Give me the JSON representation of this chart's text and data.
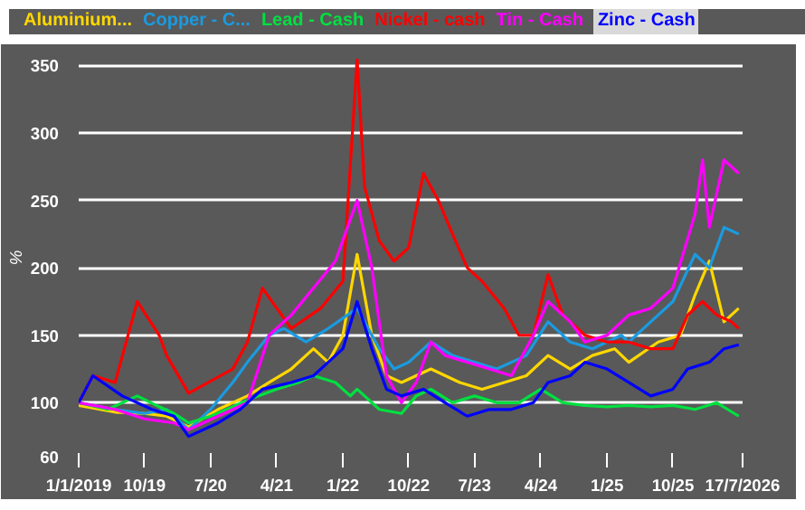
{
  "chart_data": {
    "type": "line",
    "ylabel": "%",
    "xlim": [
      "2019-01-01",
      "2026-07-17"
    ],
    "xticks": [
      {
        "value": "2019-01-01",
        "label": "1/1/2019"
      },
      {
        "value": "2019-10-01",
        "label": "10/19"
      },
      {
        "value": "2020-07-01",
        "label": "7/20"
      },
      {
        "value": "2021-04-01",
        "label": "4/21"
      },
      {
        "value": "2022-01-01",
        "label": "1/22"
      },
      {
        "value": "2022-10-01",
        "label": "10/22"
      },
      {
        "value": "2023-07-01",
        "label": "7/23"
      },
      {
        "value": "2024-04-01",
        "label": "4/24"
      },
      {
        "value": "2025-01-01",
        "label": "1/25"
      },
      {
        "value": "2025-10-01",
        "label": "10/25"
      },
      {
        "value": "2026-07-17",
        "label": "17/7/2026"
      }
    ],
    "ylim": [
      60,
      355
    ],
    "yticks": [
      60,
      100,
      150,
      200,
      250,
      300,
      350
    ],
    "grid": "y",
    "line_style": "solid",
    "marker": "none",
    "series": [
      {
        "name": "Aluminium...",
        "color": "#ffd700",
        "x": [
          "2019-01",
          "2019-06",
          "2019-10",
          "2020-01",
          "2020-04",
          "2020-08",
          "2020-12",
          "2021-03",
          "2021-06",
          "2021-09",
          "2021-11",
          "2022-01",
          "2022-03",
          "2022-05",
          "2022-07",
          "2022-09",
          "2023-01",
          "2023-05",
          "2023-08",
          "2023-11",
          "2024-02",
          "2024-05",
          "2024-08",
          "2024-11",
          "2025-02",
          "2025-04",
          "2025-08",
          "2025-11",
          "2026-01",
          "2026-03",
          "2026-05",
          "2026-07"
        ],
        "values": [
          98,
          93,
          92,
          90,
          82,
          95,
          105,
          115,
          125,
          140,
          130,
          150,
          210,
          150,
          120,
          115,
          125,
          115,
          110,
          115,
          120,
          135,
          125,
          135,
          140,
          130,
          145,
          150,
          180,
          205,
          160,
          170
        ]
      },
      {
        "name": "Copper - C...",
        "color": "#1a9be0",
        "x": [
          "2019-01",
          "2019-06",
          "2019-10",
          "2020-01",
          "2020-04",
          "2020-07",
          "2020-10",
          "2020-12",
          "2021-03",
          "2021-05",
          "2021-08",
          "2021-11",
          "2022-03",
          "2022-06",
          "2022-08",
          "2022-10",
          "2023-01",
          "2023-04",
          "2023-07",
          "2023-10",
          "2024-02",
          "2024-05",
          "2024-08",
          "2024-11",
          "2025-03",
          "2025-04",
          "2025-07",
          "2025-10",
          "2026-01",
          "2026-03",
          "2026-05",
          "2026-07"
        ],
        "values": [
          100,
          95,
          92,
          95,
          80,
          95,
          115,
          130,
          150,
          155,
          145,
          155,
          170,
          140,
          125,
          130,
          145,
          135,
          130,
          125,
          135,
          160,
          145,
          140,
          150,
          145,
          160,
          175,
          210,
          200,
          230,
          225
        ]
      },
      {
        "name": "Lead - Cash",
        "color": "#00e040",
        "x": [
          "2019-01",
          "2019-05",
          "2019-09",
          "2019-12",
          "2020-02",
          "2020-04",
          "2020-07",
          "2020-10",
          "2020-12",
          "2021-04",
          "2021-07",
          "2021-09",
          "2021-12",
          "2022-02",
          "2022-03",
          "2022-06",
          "2022-09",
          "2022-11",
          "2023-01",
          "2023-04",
          "2023-07",
          "2023-10",
          "2024-01",
          "2024-04",
          "2024-07",
          "2024-10",
          "2025-01",
          "2025-04",
          "2025-07",
          "2025-10",
          "2026-01",
          "2026-04",
          "2026-07"
        ],
        "values": [
          100,
          95,
          105,
          97,
          92,
          85,
          90,
          97,
          102,
          110,
          115,
          120,
          115,
          105,
          110,
          95,
          92,
          105,
          110,
          100,
          105,
          100,
          100,
          110,
          100,
          98,
          97,
          98,
          97,
          98,
          95,
          100,
          90
        ]
      },
      {
        "name": "Nickel - cash",
        "color": "#ff0000",
        "x": [
          "2019-01",
          "2019-03",
          "2019-06",
          "2019-09",
          "2019-12",
          "2020-01",
          "2020-04",
          "2020-10",
          "2020-12",
          "2021-02",
          "2021-06",
          "2021-10",
          "2022-01",
          "2022-03",
          "2022-04",
          "2022-06",
          "2022-08",
          "2022-10",
          "2022-12",
          "2023-02",
          "2023-04",
          "2023-06",
          "2023-08",
          "2023-11",
          "2024-01",
          "2024-03",
          "2024-05",
          "2024-07",
          "2024-10",
          "2025-01",
          "2025-04",
          "2025-07",
          "2025-10",
          "2025-12",
          "2026-02",
          "2026-04",
          "2026-06",
          "2026-07"
        ],
        "values": [
          100,
          120,
          115,
          175,
          150,
          135,
          107,
          125,
          145,
          185,
          155,
          170,
          190,
          355,
          260,
          220,
          205,
          215,
          270,
          250,
          225,
          200,
          190,
          170,
          150,
          150,
          195,
          165,
          150,
          145,
          145,
          140,
          140,
          165,
          175,
          165,
          160,
          155
        ]
      },
      {
        "name": "Tin - Cash",
        "color": "#ff00ff",
        "x": [
          "2019-01",
          "2019-06",
          "2019-10",
          "2020-02",
          "2020-04",
          "2020-08",
          "2020-12",
          "2021-03",
          "2021-06",
          "2021-09",
          "2021-12",
          "2022-03",
          "2022-05",
          "2022-07",
          "2022-09",
          "2022-11",
          "2023-01",
          "2023-03",
          "2023-06",
          "2023-09",
          "2023-12",
          "2024-03",
          "2024-05",
          "2024-08",
          "2024-10",
          "2025-01",
          "2025-04",
          "2025-07",
          "2025-10",
          "2026-01",
          "2026-02",
          "2026-03",
          "2026-05",
          "2026-07"
        ],
        "values": [
          100,
          95,
          88,
          85,
          80,
          90,
          100,
          150,
          165,
          185,
          205,
          250,
          200,
          120,
          100,
          115,
          145,
          135,
          130,
          125,
          120,
          150,
          175,
          160,
          145,
          150,
          165,
          170,
          185,
          240,
          280,
          230,
          280,
          270
        ]
      },
      {
        "name": "Zinc - Cash",
        "color": "#0000ff",
        "x": [
          "2019-01",
          "2019-03",
          "2019-07",
          "2019-11",
          "2020-02",
          "2020-04",
          "2020-08",
          "2020-11",
          "2021-02",
          "2021-06",
          "2021-09",
          "2021-11",
          "2022-01",
          "2022-03",
          "2022-05",
          "2022-07",
          "2022-09",
          "2022-12",
          "2023-03",
          "2023-06",
          "2023-09",
          "2023-12",
          "2024-03",
          "2024-05",
          "2024-08",
          "2024-10",
          "2025-01",
          "2025-04",
          "2025-07",
          "2025-10",
          "2025-12",
          "2026-03",
          "2026-05",
          "2026-07"
        ],
        "values": [
          100,
          120,
          105,
          95,
          90,
          75,
          85,
          95,
          110,
          115,
          120,
          130,
          140,
          175,
          140,
          110,
          105,
          110,
          100,
          90,
          95,
          95,
          100,
          115,
          120,
          130,
          125,
          115,
          105,
          110,
          125,
          130,
          140,
          143
        ]
      }
    ]
  }
}
